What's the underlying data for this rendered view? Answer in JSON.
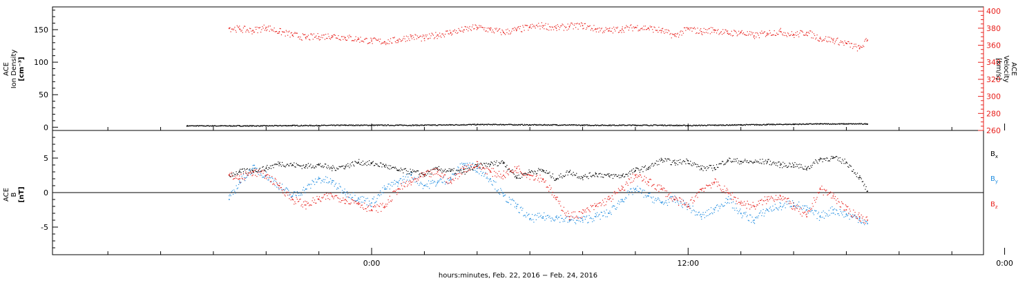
{
  "colors": {
    "black": "#000000",
    "red": "#e8201c",
    "blue": "#1e8ce0"
  },
  "chart_data": [
    {
      "type": "scatter",
      "panel": "top",
      "ylabel_left": [
        "ACE",
        "Ion Density",
        "[cm⁻³]"
      ],
      "ylabel_right": [
        "ACE",
        "Velocity",
        "[km/s]"
      ],
      "y_left_range": [
        -5,
        185
      ],
      "y_left_ticks": [
        "0",
        "50",
        "100",
        "150"
      ],
      "y_right_range": [
        260,
        405
      ],
      "y_right_ticks": [
        "260",
        "280",
        "300",
        "320",
        "340",
        "360",
        "380",
        "400"
      ],
      "series": [
        {
          "name": "Ion Density",
          "axis": "left",
          "color": "#000000",
          "x": [
            -7.0,
            -6.0,
            -5.0,
            -4.0,
            -3.0,
            -2.0,
            -1.0,
            0.0,
            1.0,
            2.0,
            3.0,
            4.0,
            5.0,
            6.0,
            7.0,
            8.0,
            9.0,
            10.0,
            11.0,
            12.0,
            13.0,
            14.0,
            15.0,
            16.0,
            17.0,
            18.0,
            18.8
          ],
          "y": [
            2,
            2,
            2,
            2,
            2.5,
            2.5,
            3,
            3,
            3,
            3,
            3.5,
            4,
            4,
            3.5,
            3.5,
            3,
            3,
            3,
            3,
            2.5,
            3,
            3.5,
            4,
            4.5,
            5,
            5,
            5
          ]
        },
        {
          "name": "Velocity",
          "axis": "right",
          "color": "#e8201c",
          "x": [
            -5.4,
            -5.0,
            -4.5,
            -4.0,
            -3.5,
            -3.0,
            -2.5,
            -2.0,
            -1.5,
            -1.0,
            -0.5,
            0.0,
            0.5,
            1.0,
            1.5,
            2.0,
            2.5,
            3.0,
            3.5,
            4.0,
            4.5,
            5.0,
            5.5,
            6.0,
            6.5,
            7.0,
            7.5,
            8.0,
            8.5,
            9.0,
            9.5,
            10.0,
            10.5,
            11.0,
            11.5,
            12.0,
            12.5,
            13.0,
            13.5,
            14.0,
            14.5,
            15.0,
            15.5,
            16.0,
            16.5,
            17.0,
            17.5,
            18.0,
            18.5,
            18.8
          ],
          "y": [
            380,
            379,
            377,
            381,
            376,
            372,
            369,
            370,
            371,
            369,
            367,
            365,
            364,
            366,
            370,
            368,
            372,
            375,
            378,
            381,
            378,
            375,
            378,
            381,
            383,
            380,
            382,
            383,
            379,
            377,
            379,
            381,
            380,
            377,
            371,
            379,
            376,
            378,
            374,
            375,
            371,
            374,
            376,
            372,
            375,
            368,
            366,
            362,
            356,
            366
          ]
        }
      ]
    },
    {
      "type": "scatter",
      "panel": "bottom",
      "ylabel_left": [
        "ACE",
        "B",
        "[nT]"
      ],
      "y_range": [
        -9,
        9
      ],
      "y_ticks": [
        "-5",
        "0",
        "5"
      ],
      "series": [
        {
          "name": "Bx",
          "label_main": "B",
          "label_sub": "x",
          "color": "#000000",
          "x": [
            -5.4,
            -5.0,
            -4.5,
            -4.0,
            -3.5,
            -3.0,
            -2.5,
            -2.0,
            -1.5,
            -1.0,
            -0.5,
            0.0,
            0.5,
            1.0,
            1.5,
            2.0,
            2.5,
            3.0,
            3.5,
            4.0,
            4.5,
            5.0,
            5.5,
            6.0,
            6.5,
            7.0,
            7.5,
            8.0,
            8.5,
            9.0,
            9.5,
            10.0,
            10.5,
            11.0,
            11.5,
            12.0,
            12.5,
            13.0,
            13.5,
            14.0,
            14.5,
            15.0,
            15.5,
            16.0,
            16.5,
            17.0,
            17.5,
            18.0,
            18.5,
            18.8
          ],
          "y": [
            2.5,
            3.0,
            3.2,
            3.5,
            4.2,
            4.0,
            3.8,
            4.0,
            3.5,
            3.8,
            4.4,
            4.2,
            3.9,
            3.2,
            3.0,
            2.6,
            3.4,
            3.1,
            3.0,
            3.8,
            4.1,
            4.4,
            2.2,
            3.0,
            3.2,
            2.0,
            3.0,
            2.2,
            2.7,
            2.4,
            2.4,
            3.2,
            3.6,
            4.7,
            4.3,
            4.6,
            3.5,
            3.6,
            4.7,
            4.5,
            4.4,
            4.5,
            4.0,
            4.0,
            3.5,
            4.8,
            5.0,
            4.4,
            2.2,
            0.2
          ]
        },
        {
          "name": "By",
          "label_main": "B",
          "label_sub": "y",
          "color": "#1e8ce0",
          "x": [
            -5.4,
            -5.0,
            -4.5,
            -4.0,
            -3.5,
            -3.0,
            -2.5,
            -2.0,
            -1.5,
            -1.0,
            -0.5,
            0.0,
            0.5,
            1.0,
            1.5,
            2.0,
            2.5,
            3.0,
            3.5,
            4.0,
            4.5,
            5.0,
            5.5,
            6.0,
            6.5,
            7.0,
            7.5,
            8.0,
            8.5,
            9.0,
            9.5,
            10.0,
            10.5,
            11.0,
            11.5,
            12.0,
            12.5,
            13.0,
            13.5,
            14.0,
            14.5,
            15.0,
            15.5,
            16.0,
            16.5,
            17.0,
            17.5,
            18.0,
            18.5,
            18.8
          ],
          "y": [
            -1.0,
            1.5,
            3.5,
            2.5,
            1.0,
            -0.5,
            0.5,
            2.0,
            1.5,
            0.0,
            -0.8,
            -1.5,
            0.5,
            1.5,
            2.5,
            1.0,
            1.5,
            2.0,
            4.2,
            3.5,
            2.0,
            -0.5,
            -2.0,
            -3.8,
            -3.5,
            -3.6,
            -4.0,
            -4.0,
            -3.5,
            -3.0,
            -1.0,
            0.5,
            -0.5,
            -1.5,
            -1.0,
            -2.0,
            -3.5,
            -2.5,
            -1.0,
            -3.0,
            -4.0,
            -2.5,
            -2.0,
            -1.5,
            -2.5,
            -3.5,
            -2.5,
            -3.2,
            -3.8,
            -4.5
          ]
        },
        {
          "name": "Bz",
          "label_main": "B",
          "label_sub": "z",
          "color": "#e8201c",
          "x": [
            -5.4,
            -5.0,
            -4.5,
            -4.0,
            -3.5,
            -3.0,
            -2.5,
            -2.0,
            -1.5,
            -1.0,
            -0.5,
            0.0,
            0.5,
            1.0,
            1.5,
            2.0,
            2.5,
            3.0,
            3.5,
            4.0,
            4.5,
            5.0,
            5.5,
            6.0,
            6.5,
            7.0,
            7.5,
            8.0,
            8.5,
            9.0,
            9.5,
            10.0,
            10.5,
            11.0,
            11.5,
            12.0,
            12.5,
            13.0,
            13.5,
            14.0,
            14.5,
            15.0,
            15.5,
            16.0,
            16.5,
            17.0,
            17.5,
            18.0,
            18.5,
            18.8
          ],
          "y": [
            2.5,
            2.0,
            3.0,
            2.5,
            1.0,
            -1.0,
            -1.8,
            -1.0,
            -0.5,
            -1.0,
            -1.5,
            -2.5,
            -2.0,
            0.5,
            1.5,
            2.5,
            3.0,
            1.5,
            3.5,
            4.0,
            3.0,
            2.5,
            3.5,
            2.5,
            2.0,
            -1.0,
            -3.5,
            -3.0,
            -2.0,
            -1.0,
            0.5,
            2.5,
            1.5,
            0.5,
            -1.0,
            -2.0,
            0.5,
            1.5,
            0.0,
            -1.5,
            -2.0,
            -1.0,
            -0.5,
            -2.0,
            -3.5,
            0.5,
            -0.5,
            -2.5,
            -3.5,
            -4.0
          ]
        }
      ]
    }
  ],
  "x_axis": {
    "range": [
      -12.1,
      23.2
    ],
    "major_hours": [
      0,
      12,
      24
    ],
    "major_labels": [
      "0:00",
      "12:00",
      "0:00"
    ],
    "minor_hours": [
      -10,
      -8,
      -6,
      -4,
      -2,
      2,
      4,
      6,
      8,
      10,
      14,
      16,
      18,
      20,
      22
    ],
    "xlabel": "hours:minutes, Feb. 22, 2016 − Feb. 24, 2016"
  }
}
